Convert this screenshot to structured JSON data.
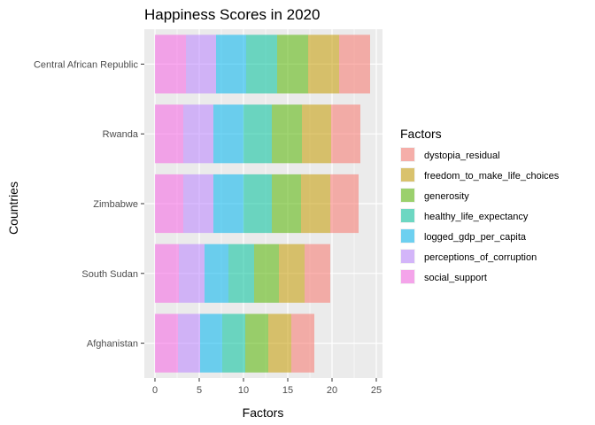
{
  "chart_data": {
    "type": "bar",
    "orientation": "horizontal",
    "stacked": true,
    "title": "Happiness Scores in 2020",
    "xlabel": "Factors",
    "ylabel": "Countries",
    "xlim": [
      -1.2,
      25.7
    ],
    "xticks": [
      0,
      5,
      10,
      15,
      20,
      25
    ],
    "grid": true,
    "legend_position": "right",
    "legend_title": "Factors",
    "categories": [
      "Central African Republic",
      "Rwanda",
      "Zimbabwe",
      "South Sudan",
      "Afghanistan"
    ],
    "stack_order": [
      "social_support",
      "perceptions_of_corruption",
      "logged_gdp_per_capita",
      "healthy_life_expectancy",
      "generosity",
      "freedom_to_make_life_choices",
      "dystopia_residual"
    ],
    "legend_order": [
      "dystopia_residual",
      "freedom_to_make_life_choices",
      "generosity",
      "healthy_life_expectancy",
      "logged_gdp_per_capita",
      "perceptions_of_corruption",
      "social_support"
    ],
    "series": [
      {
        "name": "social_support",
        "color": "#F564E3",
        "values": [
          3.5,
          3.2,
          3.2,
          2.7,
          2.6
        ]
      },
      {
        "name": "perceptions_of_corruption",
        "color": "#B983FF",
        "values": [
          3.4,
          3.4,
          3.4,
          2.9,
          2.5
        ]
      },
      {
        "name": "logged_gdp_per_capita",
        "color": "#00B4EF",
        "values": [
          3.4,
          3.4,
          3.4,
          2.7,
          2.5
        ]
      },
      {
        "name": "healthy_life_expectancy",
        "color": "#00C19A",
        "values": [
          3.5,
          3.2,
          3.2,
          2.9,
          2.6
        ]
      },
      {
        "name": "generosity",
        "color": "#53B400",
        "values": [
          3.5,
          3.4,
          3.3,
          2.8,
          2.6
        ]
      },
      {
        "name": "freedom_to_make_life_choices",
        "color": "#C49A00",
        "values": [
          3.5,
          3.3,
          3.3,
          2.9,
          2.6
        ]
      },
      {
        "name": "dystopia_residual",
        "color": "#F8766D",
        "values": [
          3.5,
          3.3,
          3.2,
          2.9,
          2.6
        ]
      }
    ]
  }
}
